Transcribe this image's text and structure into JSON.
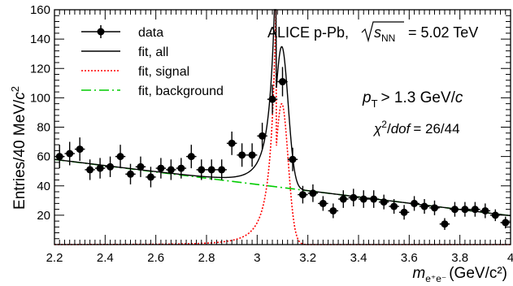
{
  "chart_data": {
    "type": "scatter",
    "xlabel": {
      "symbol": "m",
      "sub": "e⁺e⁻",
      "units": "(GeV/c²)"
    },
    "ylabel": {
      "main": "Entries/40 MeV/",
      "c": "c",
      "exp": "2"
    },
    "xlim": [
      2.2,
      4.0
    ],
    "ylim": [
      0,
      160
    ],
    "x_ticks": [
      "2.2",
      "2.4",
      "2.6",
      "2.8",
      "3",
      "3.2",
      "3.4",
      "3.6",
      "3.8",
      "4"
    ],
    "y_ticks": [
      "20",
      "40",
      "60",
      "80",
      "100",
      "120",
      "140",
      "160"
    ],
    "legend": [
      {
        "label": "data",
        "color": "#000000",
        "style": "marker"
      },
      {
        "label": "fit, all",
        "color": "#000000",
        "style": "solid"
      },
      {
        "label": "fit, signal",
        "color": "#ff0000",
        "style": "dotted"
      },
      {
        "label": "fit, background",
        "color": "#00cc00",
        "style": "dashdot"
      }
    ],
    "annotations": {
      "system": "ALICE p-Pb,",
      "energy_sym": "s",
      "energy_sub": "NN",
      "energy_val": "= 5.02 TeV",
      "pt_p": "p",
      "pt_sub": "T",
      "pt_rest": "> 1.3 GeV/",
      "pt_c": "c",
      "chi_chi": "χ",
      "chi_exp": "2",
      "chi_slash": "/",
      "chi_dof": "dof",
      "chi_val": "= 26/44"
    },
    "series": [
      {
        "name": "data",
        "color": "#000000",
        "x": [
          2.22,
          2.26,
          2.3,
          2.34,
          2.38,
          2.42,
          2.46,
          2.5,
          2.54,
          2.58,
          2.62,
          2.66,
          2.7,
          2.74,
          2.78,
          2.82,
          2.86,
          2.9,
          2.94,
          2.98,
          3.02,
          3.06,
          3.1,
          3.14,
          3.18,
          3.22,
          3.26,
          3.3,
          3.34,
          3.38,
          3.42,
          3.46,
          3.5,
          3.54,
          3.58,
          3.62,
          3.66,
          3.7,
          3.74,
          3.78,
          3.82,
          3.86,
          3.9,
          3.94,
          3.98
        ],
        "y": [
          60,
          62,
          65,
          51,
          52,
          53,
          60,
          48,
          53,
          46,
          52,
          51,
          52,
          60,
          51,
          51,
          51,
          69,
          61,
          61,
          74,
          99,
          111,
          58,
          34,
          35,
          28,
          23,
          31,
          32,
          31,
          31,
          29,
          26,
          22,
          28,
          26,
          25,
          14,
          24,
          24,
          24,
          23,
          20,
          15
        ],
        "yerr": [
          8,
          8,
          8,
          7,
          7,
          7,
          8,
          7,
          7,
          7,
          7,
          7,
          7,
          8,
          7,
          7,
          7,
          8,
          8,
          8,
          9,
          10,
          10,
          8,
          6,
          6,
          5,
          5,
          6,
          6,
          6,
          6,
          5,
          5,
          5,
          5,
          5,
          5,
          4,
          5,
          5,
          5,
          5,
          4,
          4
        ]
      },
      {
        "name": "fit, all",
        "color": "#000000",
        "style": "solid"
      },
      {
        "name": "fit, signal",
        "color": "#ff0000",
        "style": "dotted"
      },
      {
        "name": "fit, background",
        "color": "#00cc00",
        "style": "dashdot"
      }
    ]
  }
}
